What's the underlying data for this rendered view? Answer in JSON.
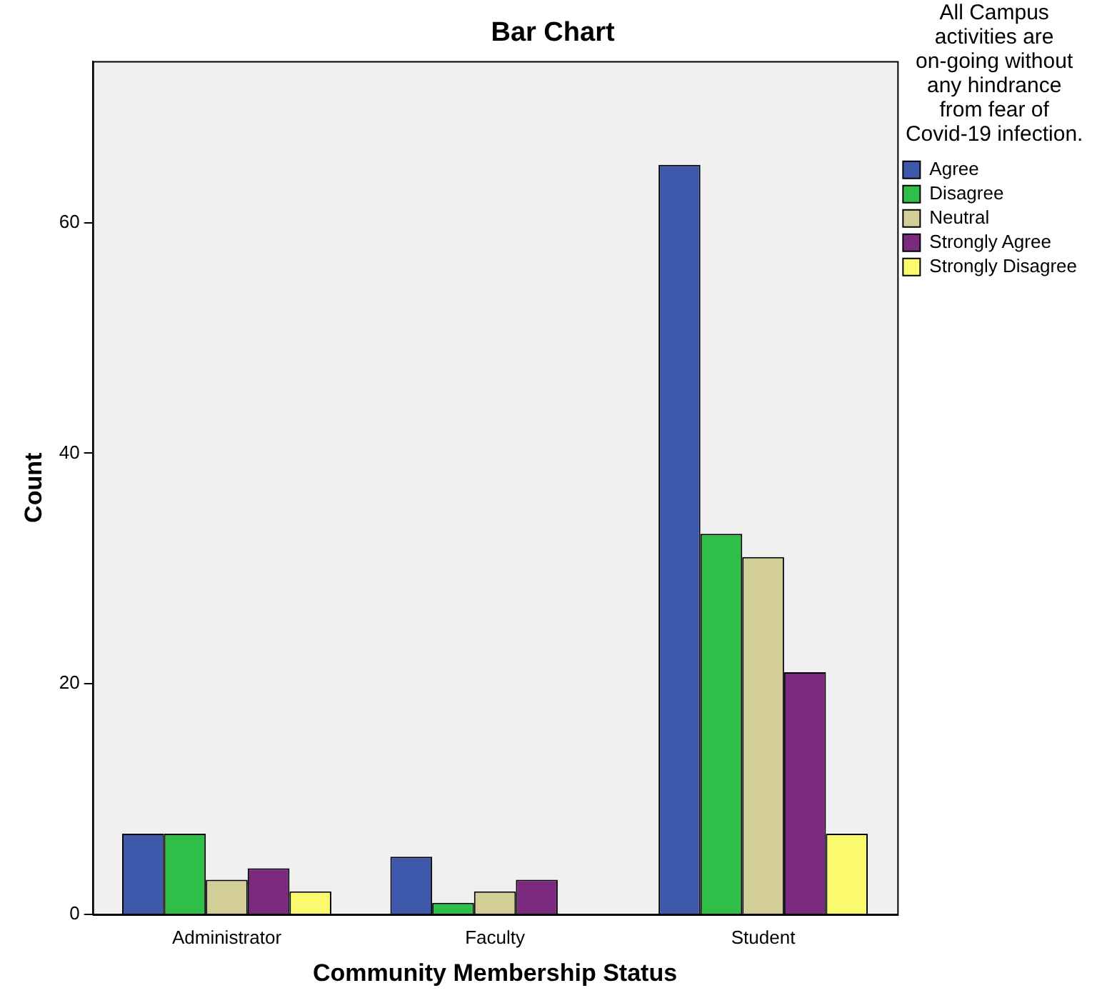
{
  "chart_data": {
    "type": "bar",
    "title": "Bar Chart",
    "xlabel": "Community Membership Status",
    "ylabel": "Count",
    "legend_title": "All Campus activities are on-going without any hindrance from fear of Covid-19 infection.",
    "categories": [
      "Administrator",
      "Faculty",
      "Student"
    ],
    "series": [
      {
        "name": "Agree",
        "color": "#3e58ac",
        "values": [
          7,
          5,
          65
        ]
      },
      {
        "name": "Disagree",
        "color": "#2fbe48",
        "values": [
          7,
          1,
          33
        ]
      },
      {
        "name": "Neutral",
        "color": "#d3cd97",
        "values": [
          3,
          2,
          31
        ]
      },
      {
        "name": "Strongly Agree",
        "color": "#7b2a7f",
        "values": [
          4,
          3,
          21
        ]
      },
      {
        "name": "Strongly Disagree",
        "color": "#fbf96c",
        "values": [
          2,
          0,
          7
        ]
      }
    ],
    "ylim": [
      0,
      74
    ],
    "yticks": [
      0,
      20,
      40,
      60
    ],
    "grid": false,
    "legend": "top right"
  }
}
